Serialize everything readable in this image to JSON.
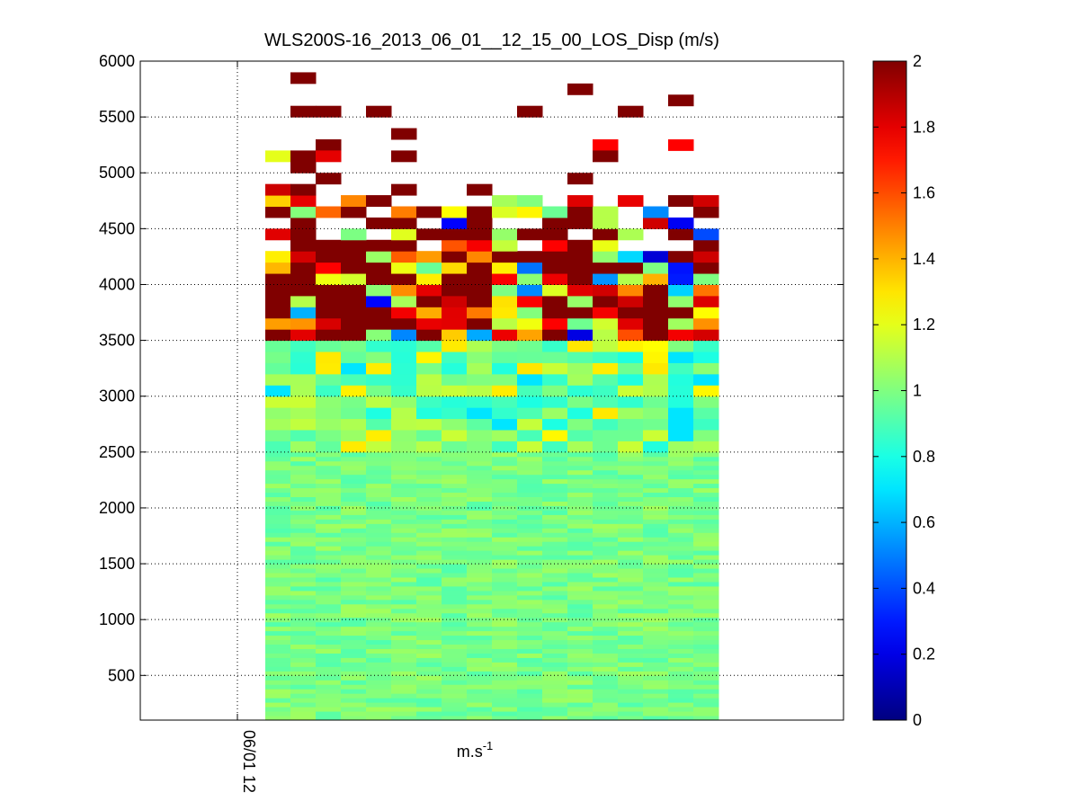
{
  "chart_data": {
    "type": "heatmap",
    "title": "WLS200S-16_2013_06_01__12_15_00_LOS_Disp (m/s)",
    "xlabel": "m.s",
    "xlabel_superscript": "-1",
    "ylabel": "",
    "x_tick_labels": [
      "06/01 12"
    ],
    "y_ticks": [
      500,
      1000,
      1500,
      2000,
      2500,
      3000,
      3500,
      4000,
      4500,
      5000,
      5500,
      6000
    ],
    "ylim": [
      100,
      6000
    ],
    "grid": true,
    "colorbar": {
      "colormap": "jet",
      "range": [
        0,
        2
      ],
      "ticks": [
        "0",
        "0.2",
        "0.4",
        "0.6",
        "0.8",
        "1",
        "1.2",
        "1.4",
        "1.6",
        "1.8",
        "2"
      ]
    },
    "grid_values": {
      "num_time_columns": 18,
      "altitude_min": 100,
      "altitude_max": 6000,
      "low_altitude_range": [
        100,
        2500
      ],
      "low_altitude_value_range": [
        0.8,
        1.1
      ],
      "mid_altitude_range": [
        2500,
        3500
      ],
      "mid_altitude_value_range": [
        0.7,
        1.3
      ],
      "high_altitude_range": [
        3500,
        4800
      ],
      "high_altitude_value_range": [
        0.1,
        2.0
      ],
      "sparse_high_cells": [
        {
          "col": 1,
          "alt": 5850,
          "value": 2.0
        },
        {
          "col": 1,
          "alt": 5550,
          "value": 2.0
        },
        {
          "col": 2,
          "alt": 5550,
          "value": 2.0
        },
        {
          "col": 4,
          "alt": 5550,
          "value": 2.0
        },
        {
          "col": 10,
          "alt": 5550,
          "value": 2.0
        },
        {
          "col": 14,
          "alt": 5550,
          "value": 2.0
        },
        {
          "col": 12,
          "alt": 5750,
          "value": 2.0
        },
        {
          "col": 16,
          "alt": 5650,
          "value": 2.0
        },
        {
          "col": 5,
          "alt": 5350,
          "value": 2.0
        },
        {
          "col": 2,
          "alt": 5250,
          "value": 2.0
        },
        {
          "col": 13,
          "alt": 5250,
          "value": 1.75
        },
        {
          "col": 16,
          "alt": 5250,
          "value": 1.75
        },
        {
          "col": 0,
          "alt": 5150,
          "value": 1.2
        },
        {
          "col": 1,
          "alt": 5150,
          "value": 2.0
        },
        {
          "col": 2,
          "alt": 5150,
          "value": 1.8
        },
        {
          "col": 5,
          "alt": 5150,
          "value": 2.0
        },
        {
          "col": 13,
          "alt": 5150,
          "value": 2.0
        },
        {
          "col": 1,
          "alt": 5050,
          "value": 2.0
        },
        {
          "col": 2,
          "alt": 4950,
          "value": 2.0
        },
        {
          "col": 12,
          "alt": 4950,
          "value": 2.0
        },
        {
          "col": 0,
          "alt": 4850,
          "value": 1.85
        },
        {
          "col": 1,
          "alt": 4850,
          "value": 2.0
        },
        {
          "col": 5,
          "alt": 4850,
          "value": 2.0
        },
        {
          "col": 8,
          "alt": 4850,
          "value": 2.0
        }
      ]
    }
  }
}
